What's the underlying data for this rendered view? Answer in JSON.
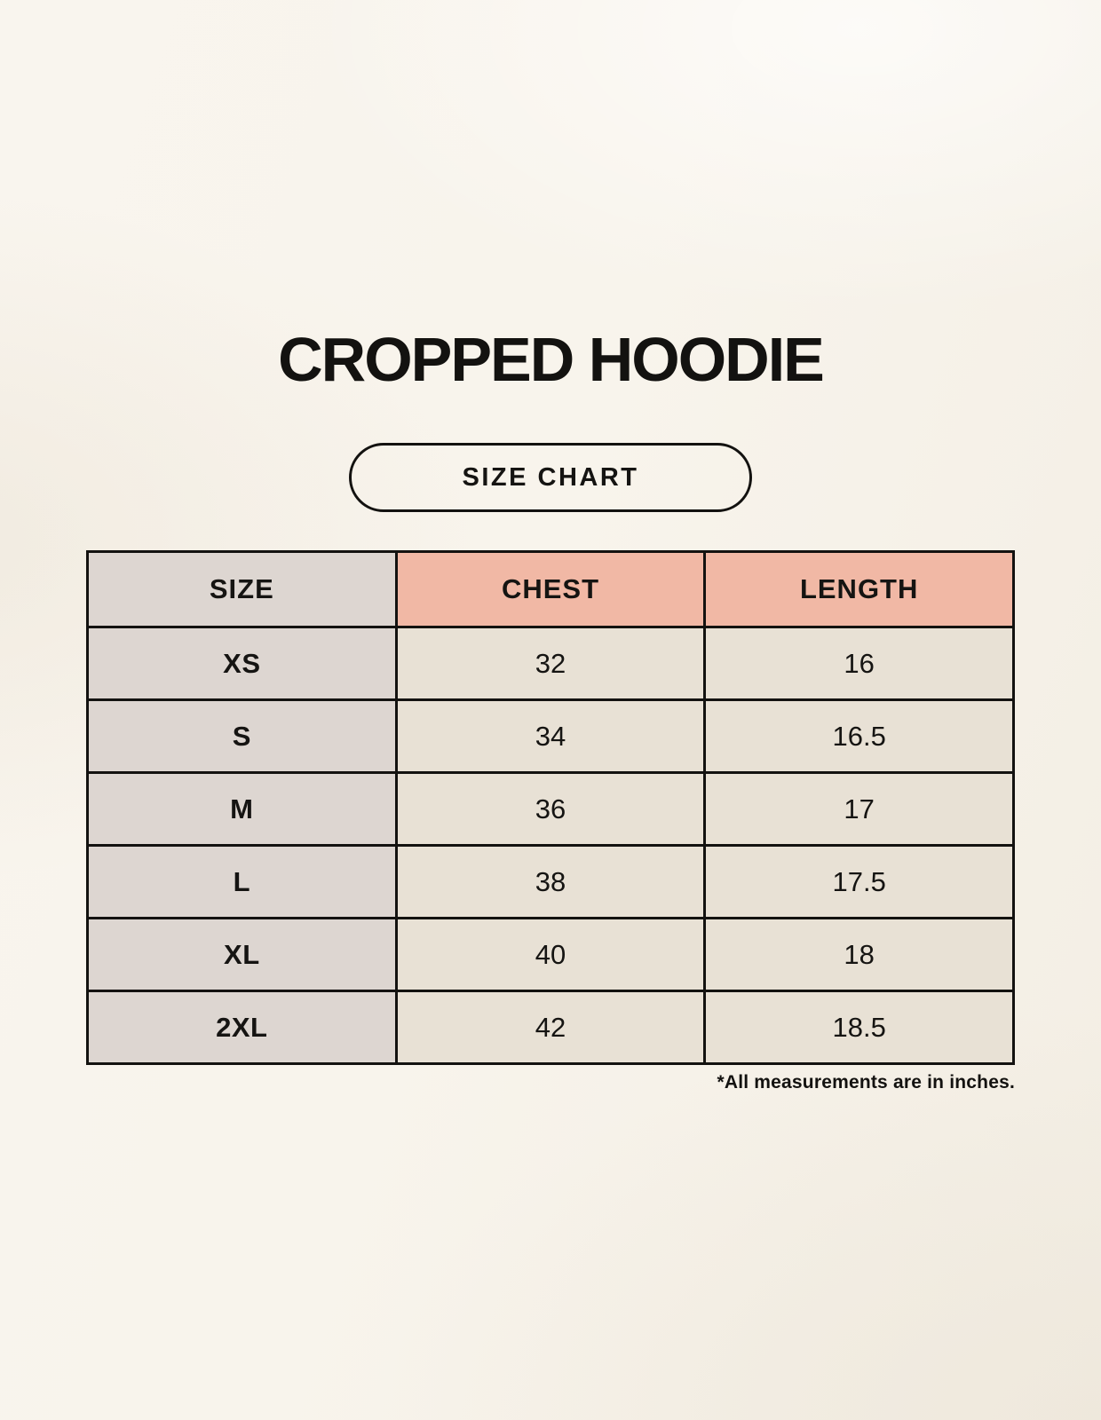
{
  "page": {
    "title": "CROPPED HOODIE",
    "badge_label": "SIZE CHART",
    "footnote": "*All measurements are in inches."
  },
  "chart_data": {
    "type": "table",
    "title": "CROPPED HOODIE",
    "columns": [
      "SIZE",
      "CHEST",
      "LENGTH"
    ],
    "rows": [
      [
        "XS",
        "32",
        "16"
      ],
      [
        "S",
        "34",
        "16.5"
      ],
      [
        "M",
        "36",
        "17"
      ],
      [
        "L",
        "38",
        "17.5"
      ],
      [
        "XL",
        "40",
        "18"
      ],
      [
        "2XL",
        "42",
        "18.5"
      ]
    ],
    "units": "inches",
    "layout": {
      "header_row": true,
      "size_column_highlight": true
    }
  },
  "colors": {
    "background": "#f8f4ec",
    "size_column_bg": "#ddd6d1",
    "measure_header_bg": "#f1b8a5",
    "data_cell_bg": "#e8e1d5",
    "border": "#131210",
    "text": "#131210"
  }
}
